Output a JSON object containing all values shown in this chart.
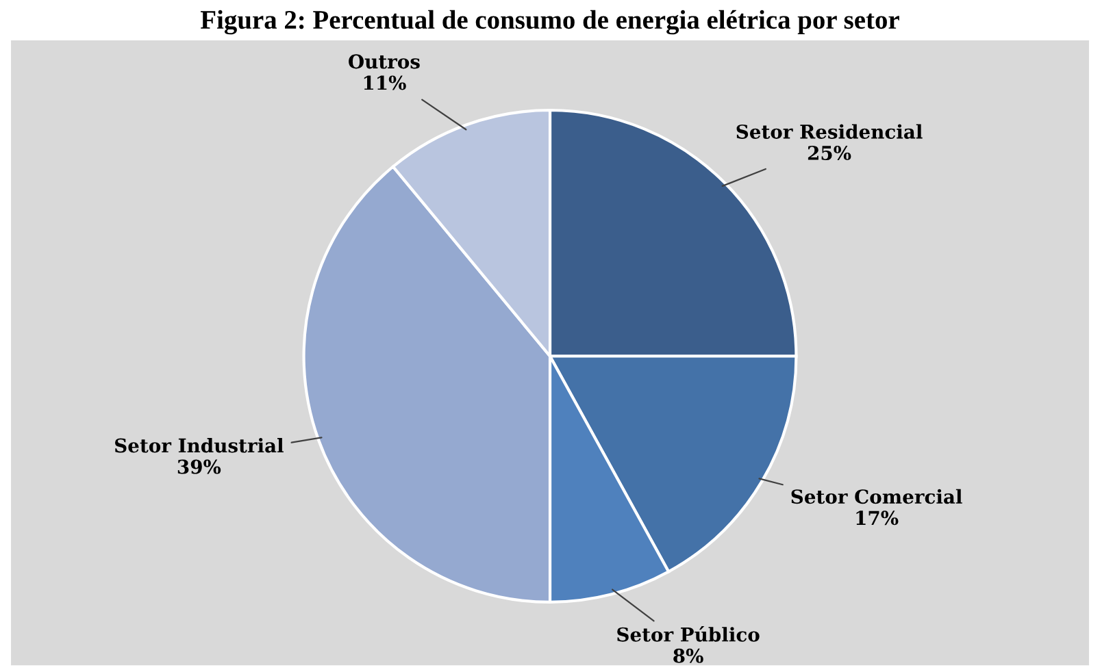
{
  "chart_data": {
    "type": "pie",
    "title": "Figura 2: Percentual de consumo de energia elétrica por setor",
    "categories": [
      "Setor Residencial",
      "Setor Comercial",
      "Setor Público",
      "Setor Industrial",
      "Outros"
    ],
    "values": [
      25,
      17,
      8,
      39,
      11
    ],
    "value_labels": [
      "25%",
      "17%",
      "8%",
      "39%",
      "11%"
    ],
    "colors": [
      "#3b5e8c",
      "#4472a8",
      "#4f81bd",
      "#95a9d0",
      "#b9c5df"
    ],
    "legend": false
  }
}
